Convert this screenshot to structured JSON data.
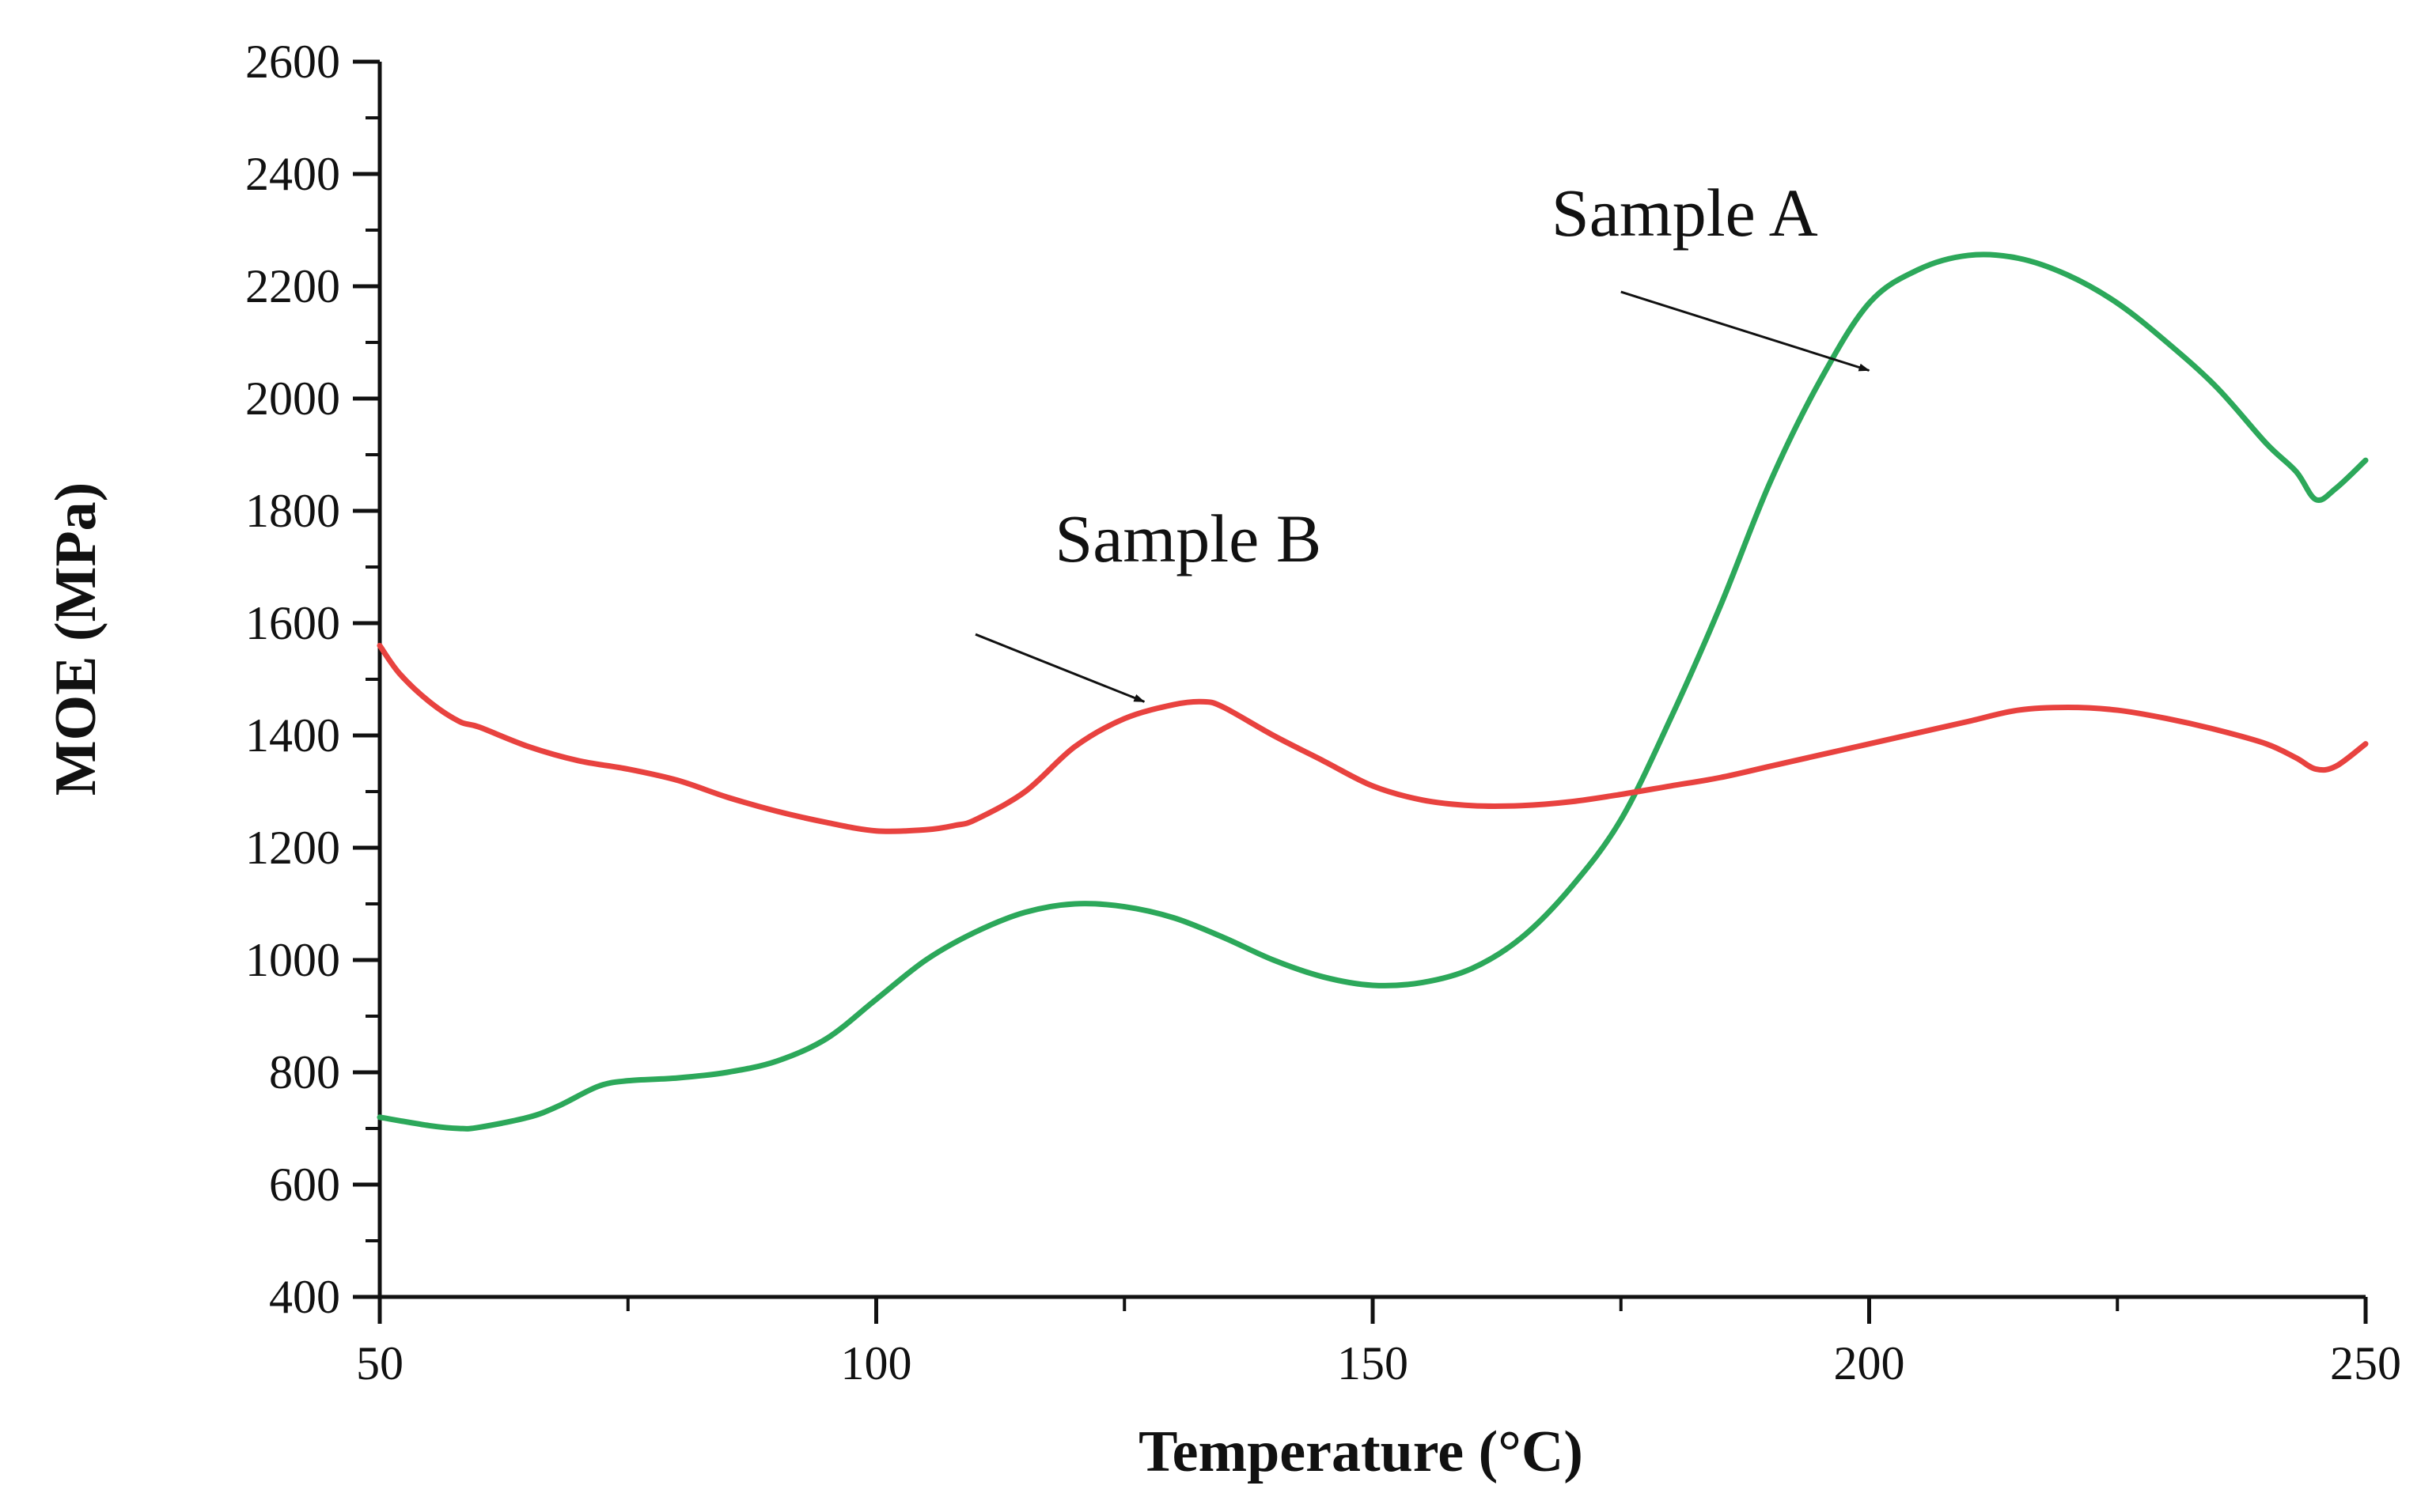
{
  "chart_data": {
    "type": "line",
    "title": "",
    "xlabel": "Temperature (°C)",
    "ylabel": "MOE (MPa)",
    "xlim": [
      50,
      250
    ],
    "ylim": [
      400,
      2600
    ],
    "xticks": [
      50,
      100,
      150,
      200,
      250
    ],
    "yticks": [
      400,
      600,
      800,
      1000,
      1200,
      1400,
      1600,
      1800,
      2000,
      2200,
      2400,
      2600
    ],
    "grid": false,
    "series": [
      {
        "name": "Sample A",
        "color": "#2ca85a",
        "x": [
          50,
          55,
          58,
          60,
          65,
          68,
          72,
          75,
          80,
          85,
          90,
          95,
          100,
          105,
          110,
          115,
          120,
          125,
          130,
          135,
          140,
          145,
          150,
          155,
          160,
          165,
          170,
          175,
          180,
          185,
          190,
          195,
          200,
          205,
          210,
          215,
          220,
          225,
          230,
          235,
          240,
          243,
          245,
          247,
          250
        ],
        "y": [
          720,
          705,
          700,
          702,
          720,
          740,
          775,
          785,
          790,
          800,
          820,
          860,
          930,
          1000,
          1050,
          1085,
          1100,
          1095,
          1075,
          1040,
          1000,
          970,
          955,
          960,
          985,
          1040,
          1130,
          1250,
          1430,
          1630,
          1850,
          2030,
          2170,
          2230,
          2255,
          2250,
          2220,
          2170,
          2100,
          2020,
          1920,
          1870,
          1820,
          1840,
          1890
        ]
      },
      {
        "name": "Sample B",
        "color": "#e8423f",
        "x": [
          50,
          52,
          55,
          58,
          60,
          65,
          70,
          75,
          80,
          85,
          90,
          95,
          100,
          105,
          108,
          110,
          115,
          120,
          125,
          130,
          133,
          135,
          140,
          145,
          150,
          155,
          160,
          165,
          170,
          175,
          180,
          185,
          190,
          195,
          200,
          205,
          210,
          215,
          220,
          225,
          230,
          235,
          240,
          243,
          245,
          247,
          250
        ],
        "y": [
          1560,
          1510,
          1460,
          1425,
          1415,
          1380,
          1355,
          1340,
          1320,
          1290,
          1265,
          1245,
          1230,
          1232,
          1240,
          1250,
          1300,
          1380,
          1430,
          1455,
          1460,
          1450,
          1400,
          1355,
          1310,
          1285,
          1275,
          1275,
          1282,
          1295,
          1310,
          1325,
          1345,
          1365,
          1385,
          1405,
          1425,
          1445,
          1450,
          1445,
          1430,
          1410,
          1385,
          1360,
          1340,
          1345,
          1385
        ]
      }
    ],
    "annotations": [
      {
        "text": "Sample A",
        "series": "Sample A",
        "label_x": 168,
        "label_y": 2290,
        "arrow_from": [
          175,
          2190
        ],
        "arrow_to": [
          200,
          2050
        ]
      },
      {
        "text": "Sample B",
        "series": "Sample B",
        "label_x": 118,
        "label_y": 1710,
        "arrow_from": [
          110,
          1580
        ],
        "arrow_to": [
          127,
          1460
        ]
      }
    ]
  }
}
